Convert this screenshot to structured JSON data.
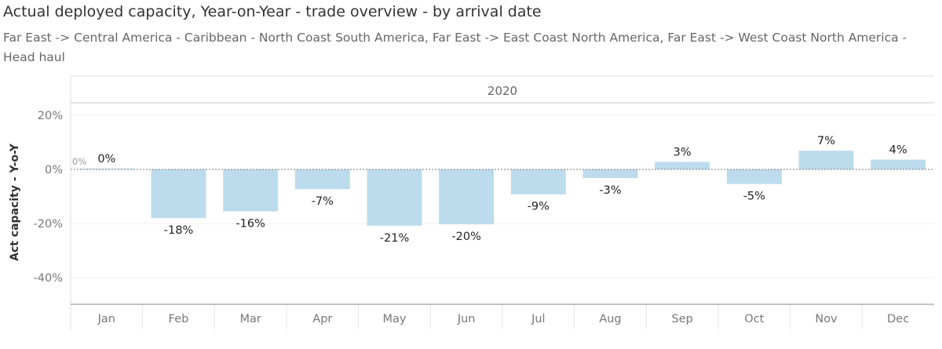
{
  "chart_data": {
    "type": "bar",
    "title": "Actual deployed capacity, Year-on-Year - trade overview - by arrival date",
    "subtitle": "Far East -> Central America - Caribbean - North Coast South America, Far East -> East Coast North America, Far East -> West Coast North America - Head haul",
    "column_header": "2020",
    "ylabel": "Act capacity - Y-o-Y",
    "xlabel": "",
    "categories": [
      "Jan",
      "Feb",
      "Mar",
      "Apr",
      "May",
      "Jun",
      "Jul",
      "Aug",
      "Sep",
      "Oct",
      "Nov",
      "Dec"
    ],
    "values": [
      0.3,
      -18,
      -15.5,
      -7.3,
      -20.8,
      -20.3,
      -9.2,
      -3.2,
      2.8,
      -5.4,
      6.9,
      3.6
    ],
    "data_labels": [
      "0%",
      "-18%",
      "-16%",
      "-7%",
      "-21%",
      "-20%",
      "-9%",
      "-3%",
      "3%",
      "-5%",
      "7%",
      "4%"
    ],
    "yticks": [
      20,
      0,
      -20,
      -40
    ],
    "ytick_labels": [
      "20%",
      "0%",
      "-20%",
      "-40%"
    ],
    "ylim": [
      -50,
      25
    ],
    "reference_line": {
      "value": 0,
      "label": "0%"
    },
    "grid": true,
    "bar_color": "#bcdcee"
  }
}
